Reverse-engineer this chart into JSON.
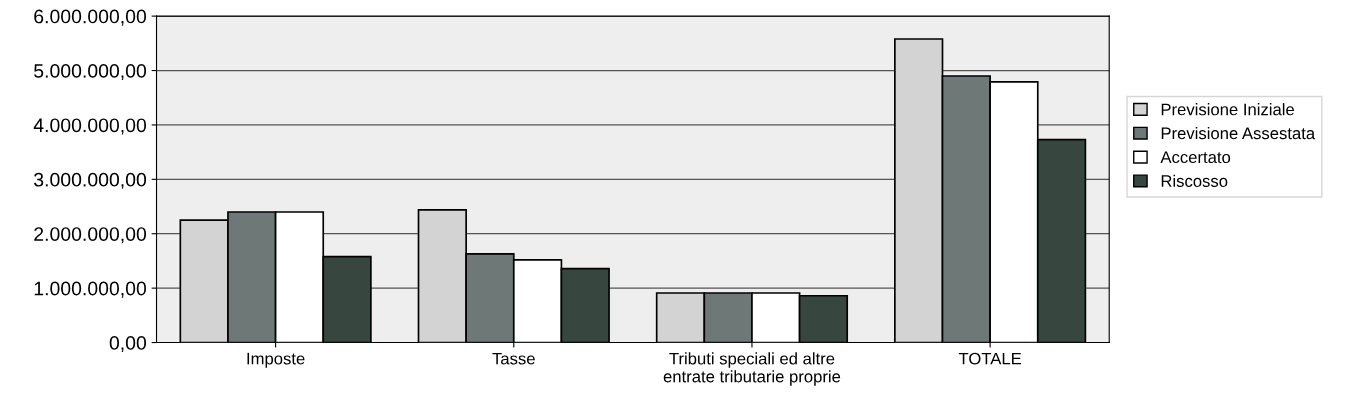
{
  "chart_data": {
    "type": "bar",
    "categories": [
      "Imposte",
      "Tasse",
      "Tributi speciali ed altre\nentrate tributarie proprie",
      "TOTALE"
    ],
    "series": [
      {
        "name": "Previsione Iniziale",
        "color": "#d3d3d3",
        "values": [
          2250000,
          2440000,
          910000,
          5580000
        ]
      },
      {
        "name": "Previsione Assestata",
        "color": "#6e7876",
        "values": [
          2400000,
          1630000,
          910000,
          4900000
        ]
      },
      {
        "name": "Accertato",
        "color": "#ffffff",
        "values": [
          2400000,
          1520000,
          910000,
          4790000
        ]
      },
      {
        "name": "Riscosso",
        "color": "#37463f",
        "values": [
          1580000,
          1360000,
          860000,
          3730000
        ]
      }
    ],
    "ylim": [
      0,
      6000000
    ],
    "yticks": [
      {
        "value": 0,
        "label": "0,00"
      },
      {
        "value": 1000000,
        "label": "1.000.000,00"
      },
      {
        "value": 2000000,
        "label": "2.000.000,00"
      },
      {
        "value": 3000000,
        "label": "3.000.000,00"
      },
      {
        "value": 4000000,
        "label": "4.000.000,00"
      },
      {
        "value": 5000000,
        "label": "5.000.000,00"
      },
      {
        "value": 6000000,
        "label": "6.000.000,00"
      }
    ],
    "grid": "y",
    "legend": "right"
  }
}
